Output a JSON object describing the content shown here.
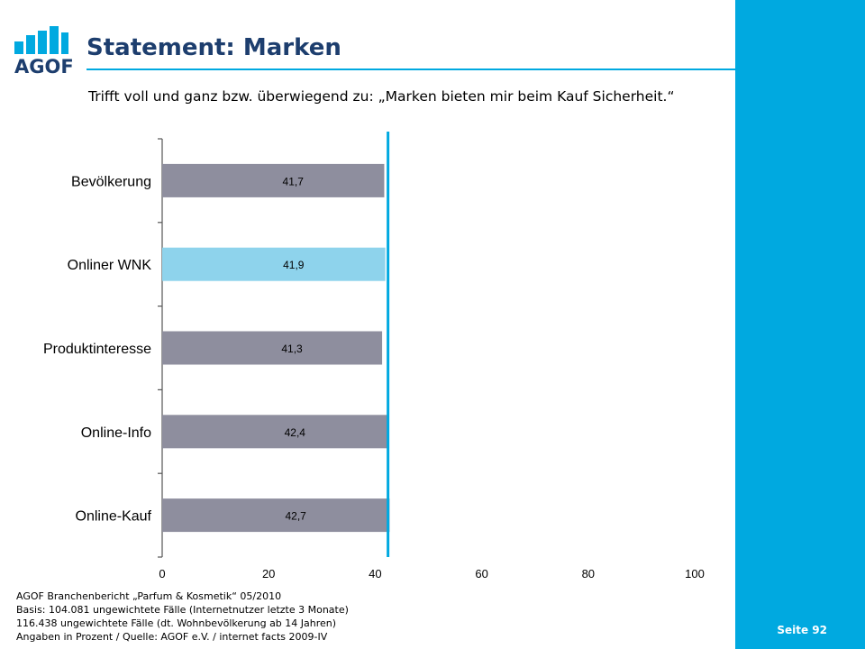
{
  "header": {
    "logo_text": "AGOF",
    "title": "Statement: Marken",
    "subtitle": "Trifft voll und ganz bzw. überwiegend zu: „Marken bieten mir beim Kauf Sicherheit.“"
  },
  "chart_data": {
    "type": "bar",
    "orientation": "horizontal",
    "categories": [
      "Bevölkerung",
      "Onliner WNK",
      "Produktinteresse",
      "Online-Info",
      "Online-Kauf"
    ],
    "values": [
      41.7,
      41.9,
      41.3,
      42.4,
      42.7
    ],
    "value_labels": [
      "41,7",
      "41,9",
      "41,3",
      "42,4",
      "42,7"
    ],
    "bar_colors": [
      "#8e8e9e",
      "#8ed3ec",
      "#8e8e9e",
      "#8e8e9e",
      "#8e8e9e"
    ],
    "reference_line": 41.9,
    "reference_color": "#00a9e0",
    "xlim": [
      0,
      100
    ],
    "xticks": [
      "0",
      "20",
      "40",
      "60",
      "80",
      "100"
    ],
    "grid": false
  },
  "footer": {
    "lines": [
      "AGOF Branchenbericht „Parfum & Kosmetik“ 05/2010",
      "Basis: 104.081 ungewichtete Fälle (Internetnutzer letzte 3 Monate)",
      "116.438 ungewichtete Fälle (dt. Wohnbevölkerung ab 14 Jahren)",
      "Angaben in Prozent / Quelle: AGOF e.V. / internet facts 2009-IV"
    ],
    "page": "Seite 92"
  },
  "colors": {
    "accent": "#00a9e0",
    "brand": "#1d3e6e"
  }
}
